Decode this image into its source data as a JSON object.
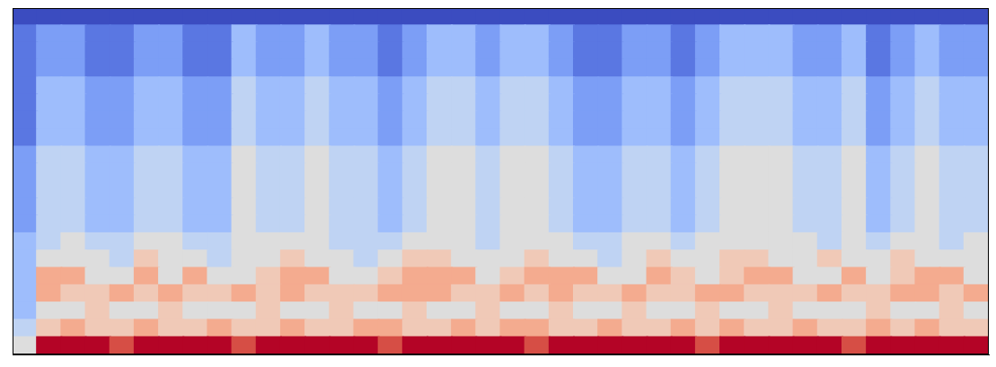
{
  "chart_data": {
    "type": "heatmap",
    "xlim": [
      0,
      40
    ],
    "ylim": [
      0,
      20
    ],
    "zlim": [
      0,
      10
    ],
    "tick_labels": false,
    "grid": false,
    "cells": [
      [
        5,
        10,
        10,
        10,
        9,
        10,
        10,
        10,
        10,
        9,
        10,
        10,
        10,
        10,
        10,
        9,
        10,
        10,
        10,
        10,
        10,
        9,
        10,
        10,
        10,
        10,
        10,
        10,
        9,
        10,
        10,
        10,
        10,
        10,
        9,
        10,
        10,
        10,
        10,
        10
      ],
      [
        4,
        6,
        7,
        6,
        6,
        7,
        6,
        6,
        7,
        6,
        6,
        7,
        6,
        6,
        7,
        7,
        6,
        6,
        7,
        6,
        7,
        7,
        6,
        6,
        7,
        6,
        6,
        7,
        6,
        7,
        6,
        6,
        7,
        6,
        6,
        7,
        6,
        7,
        6,
        6
      ],
      [
        3,
        5,
        5,
        6,
        5,
        5,
        6,
        5,
        5,
        5,
        6,
        5,
        5,
        6,
        5,
        5,
        6,
        5,
        5,
        6,
        5,
        5,
        6,
        5,
        5,
        6,
        5,
        5,
        6,
        5,
        5,
        6,
        5,
        5,
        5,
        6,
        5,
        5,
        6,
        5
      ],
      [
        3,
        7,
        6,
        6,
        7,
        6,
        7,
        6,
        6,
        7,
        6,
        7,
        6,
        6,
        6,
        7,
        7,
        7,
        6,
        6,
        7,
        6,
        7,
        6,
        6,
        7,
        6,
        6,
        7,
        7,
        6,
        6,
        6,
        7,
        6,
        6,
        7,
        7,
        6,
        7
      ],
      [
        3,
        7,
        7,
        5,
        5,
        7,
        5,
        7,
        5,
        5,
        6,
        7,
        7,
        5,
        5,
        6,
        7,
        7,
        7,
        5,
        6,
        7,
        7,
        7,
        5,
        5,
        7,
        6,
        5,
        6,
        7,
        7,
        5,
        5,
        7,
        5,
        6,
        7,
        7,
        5
      ],
      [
        3,
        5,
        5,
        5,
        4,
        6,
        5,
        5,
        4,
        5,
        5,
        6,
        5,
        5,
        4,
        5,
        6,
        6,
        5,
        5,
        5,
        6,
        5,
        5,
        4,
        5,
        6,
        5,
        5,
        6,
        6,
        5,
        5,
        6,
        5,
        5,
        6,
        5,
        5,
        5
      ],
      [
        3,
        4,
        5,
        4,
        4,
        5,
        5,
        4,
        4,
        5,
        5,
        5,
        5,
        4,
        4,
        4,
        5,
        5,
        5,
        4,
        5,
        5,
        5,
        4,
        4,
        5,
        5,
        4,
        5,
        5,
        5,
        5,
        5,
        4,
        5,
        4,
        5,
        5,
        4,
        5
      ],
      [
        2,
        4,
        4,
        3,
        3,
        4,
        4,
        3,
        3,
        5,
        4,
        4,
        5,
        4,
        4,
        3,
        4,
        5,
        5,
        4,
        5,
        5,
        4,
        3,
        3,
        4,
        4,
        3,
        4,
        5,
        5,
        5,
        4,
        4,
        5,
        3,
        4,
        5,
        4,
        4
      ],
      [
        2,
        4,
        4,
        3,
        3,
        4,
        4,
        3,
        3,
        5,
        4,
        4,
        5,
        4,
        4,
        3,
        4,
        5,
        5,
        4,
        5,
        5,
        4,
        3,
        3,
        4,
        4,
        3,
        4,
        5,
        5,
        5,
        4,
        4,
        5,
        3,
        4,
        5,
        4,
        4
      ],
      [
        2,
        4,
        4,
        3,
        3,
        4,
        4,
        3,
        3,
        5,
        4,
        4,
        5,
        4,
        4,
        3,
        4,
        5,
        5,
        4,
        5,
        5,
        4,
        3,
        3,
        4,
        4,
        3,
        4,
        5,
        5,
        5,
        4,
        4,
        5,
        3,
        4,
        5,
        4,
        4
      ],
      [
        2,
        4,
        4,
        3,
        3,
        4,
        4,
        3,
        3,
        5,
        4,
        4,
        5,
        4,
        4,
        3,
        4,
        5,
        5,
        4,
        5,
        5,
        4,
        3,
        3,
        4,
        4,
        3,
        4,
        5,
        5,
        5,
        4,
        4,
        5,
        3,
        4,
        5,
        4,
        4
      ],
      [
        2,
        4,
        4,
        3,
        3,
        4,
        4,
        3,
        3,
        5,
        4,
        4,
        5,
        4,
        4,
        3,
        4,
        5,
        5,
        4,
        5,
        5,
        4,
        3,
        3,
        4,
        4,
        3,
        4,
        5,
        5,
        5,
        4,
        4,
        5,
        3,
        4,
        5,
        4,
        4
      ],
      [
        1,
        3,
        3,
        2,
        2,
        3,
        3,
        2,
        2,
        4,
        3,
        3,
        4,
        3,
        3,
        2,
        3,
        4,
        4,
        3,
        4,
        4,
        3,
        2,
        2,
        3,
        3,
        2,
        3,
        4,
        4,
        4,
        3,
        3,
        4,
        2,
        3,
        4,
        3,
        3
      ],
      [
        1,
        3,
        3,
        2,
        2,
        3,
        3,
        2,
        2,
        4,
        3,
        3,
        4,
        3,
        3,
        2,
        3,
        4,
        4,
        3,
        4,
        4,
        3,
        2,
        2,
        3,
        3,
        2,
        3,
        4,
        4,
        4,
        3,
        3,
        4,
        2,
        3,
        4,
        3,
        3
      ],
      [
        1,
        3,
        3,
        2,
        2,
        3,
        3,
        2,
        2,
        4,
        3,
        3,
        4,
        3,
        3,
        2,
        3,
        4,
        4,
        3,
        4,
        4,
        3,
        2,
        2,
        3,
        3,
        2,
        3,
        4,
        4,
        4,
        3,
        3,
        4,
        2,
        3,
        4,
        3,
        3
      ],
      [
        1,
        3,
        3,
        2,
        2,
        3,
        3,
        2,
        2,
        4,
        3,
        3,
        4,
        3,
        3,
        2,
        3,
        4,
        4,
        3,
        4,
        4,
        3,
        2,
        2,
        3,
        3,
        2,
        3,
        4,
        4,
        4,
        3,
        3,
        4,
        2,
        3,
        4,
        3,
        3
      ],
      [
        1,
        2,
        2,
        1,
        1,
        2,
        2,
        1,
        1,
        3,
        2,
        2,
        3,
        2,
        2,
        1,
        2,
        3,
        3,
        2,
        3,
        3,
        2,
        1,
        1,
        2,
        2,
        1,
        2,
        3,
        3,
        3,
        2,
        2,
        3,
        1,
        2,
        3,
        2,
        2
      ],
      [
        1,
        2,
        2,
        1,
        1,
        2,
        2,
        1,
        1,
        3,
        2,
        2,
        3,
        2,
        2,
        1,
        2,
        3,
        3,
        2,
        3,
        3,
        2,
        1,
        1,
        2,
        2,
        1,
        2,
        3,
        3,
        3,
        2,
        2,
        3,
        1,
        2,
        3,
        2,
        2
      ],
      [
        1,
        2,
        2,
        1,
        1,
        2,
        2,
        1,
        1,
        3,
        2,
        2,
        3,
        2,
        2,
        1,
        2,
        3,
        3,
        2,
        3,
        3,
        2,
        1,
        1,
        2,
        2,
        1,
        2,
        3,
        3,
        3,
        2,
        2,
        3,
        1,
        2,
        3,
        2,
        2
      ],
      [
        0,
        0,
        0,
        0,
        0,
        0,
        0,
        0,
        0,
        0,
        0,
        0,
        0,
        0,
        0,
        0,
        0,
        0,
        0,
        0,
        0,
        0,
        0,
        0,
        0,
        0,
        0,
        0,
        0,
        0,
        0,
        0,
        0,
        0,
        0,
        0,
        0,
        0,
        0,
        0
      ]
    ]
  }
}
